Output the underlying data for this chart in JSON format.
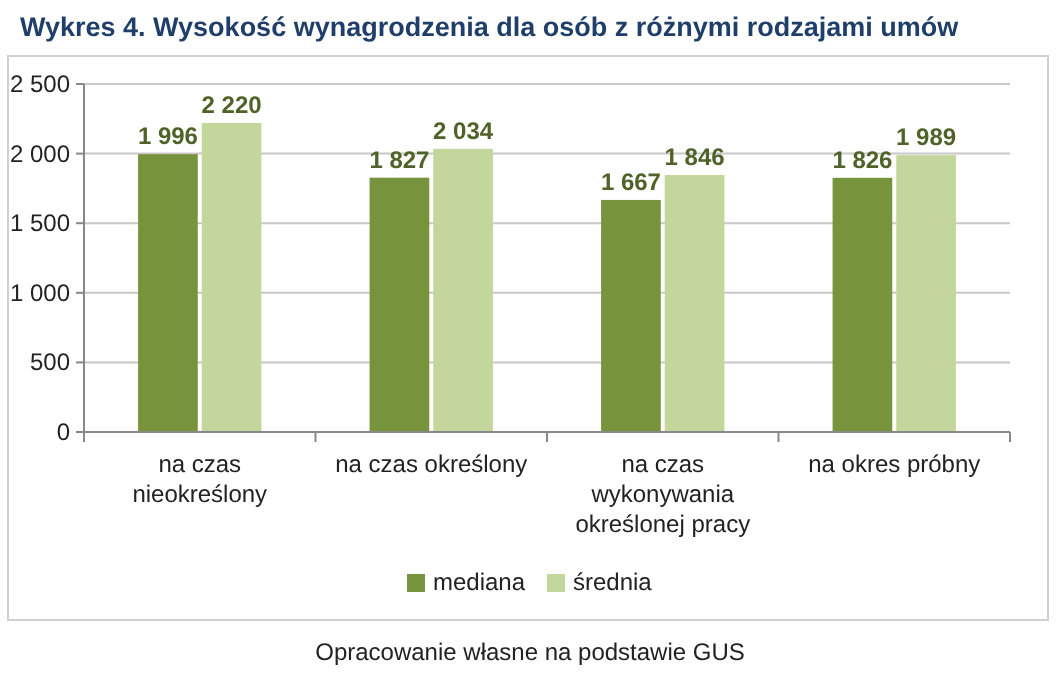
{
  "chart_data": {
    "type": "bar",
    "title": "Wykres 4. Wysokość wynagrodzenia dla osób z różnymi rodzajami umów",
    "categories": [
      "na czas nieokreślony",
      "na czas określony",
      "na czas wykonywania określonej pracy",
      "na okres próbny"
    ],
    "series": [
      {
        "name": "mediana",
        "color": "#77933c",
        "values": [
          1996,
          1827,
          1667,
          1826
        ],
        "value_labels": [
          "1 996",
          "1 827",
          "1 667",
          "1 826"
        ]
      },
      {
        "name": "średnia",
        "color": "#c3d69b",
        "values": [
          2220,
          2034,
          1846,
          1989
        ],
        "value_labels": [
          "2 220",
          "2 034",
          "1 846",
          "1 989"
        ]
      }
    ],
    "ylim": [
      0,
      2500
    ],
    "yticks": [
      0,
      500,
      {
        "value": 1000,
        "label": "1 000"
      },
      {
        "value": 1500,
        "label": "1 500"
      },
      {
        "value": 2000,
        "label": "2 000"
      },
      {
        "value": 2500,
        "label": "2 500"
      }
    ],
    "grid": "y",
    "legend": "bottom",
    "annotations": [
      "Opracowanie własne na podstawie GUS"
    ]
  }
}
